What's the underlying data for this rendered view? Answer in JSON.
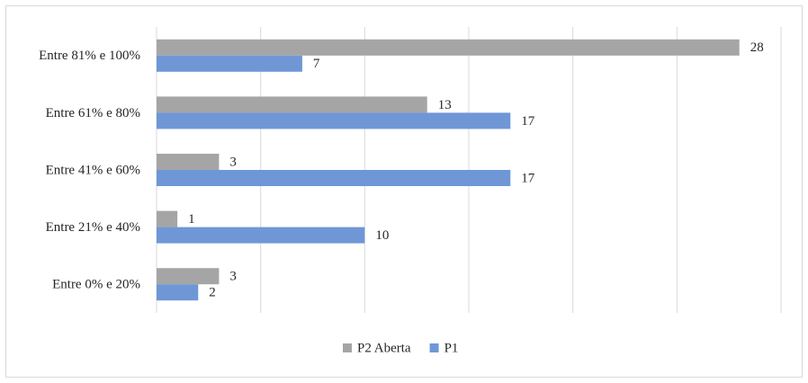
{
  "chart_data": {
    "type": "hbar",
    "categories": [
      "Entre 81% e 100%",
      "Entre 61% e 80%",
      "Entre 41% e 60%",
      "Entre 21% e 40%",
      "Entre 0% e 20%"
    ],
    "series": [
      {
        "name": "P2 Aberta",
        "color": "#a5a5a5",
        "values": [
          28,
          13,
          3,
          1,
          3
        ]
      },
      {
        "name": "P1",
        "color": "#6f97d6",
        "values": [
          7,
          17,
          17,
          10,
          2
        ]
      }
    ],
    "xlim": [
      0,
      30
    ],
    "xticks": [
      0,
      5,
      10,
      15,
      20,
      25,
      30
    ],
    "grid": true,
    "legend": "bottom"
  }
}
